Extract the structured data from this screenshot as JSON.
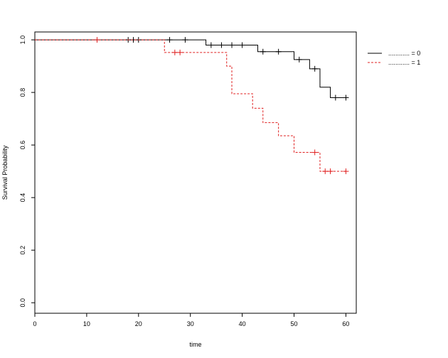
{
  "chart_data": {
    "type": "line",
    "chart_kind": "kaplan-meier survival curve (step)",
    "xlabel": "time",
    "ylabel": "Survival Probability",
    "xlim": [
      0,
      62
    ],
    "ylim": [
      -0.04,
      1.03
    ],
    "x_ticks": [
      "0",
      "10",
      "20",
      "30",
      "40",
      "50",
      "60"
    ],
    "y_ticks": [
      "0.0",
      "0.2",
      "0.4",
      "0.6",
      "0.8",
      "1.0"
    ],
    "grid": false,
    "legend": {
      "placement": "top-right"
    },
    "series": [
      {
        "name": "............ = 0",
        "color": "#000000",
        "dash": "solid",
        "steps": [
          [
            0,
            1.0
          ],
          [
            33,
            0.98
          ],
          [
            43,
            0.955
          ],
          [
            50,
            0.925
          ],
          [
            53,
            0.89
          ],
          [
            55,
            0.82
          ],
          [
            57,
            0.78
          ],
          [
            60,
            0.78
          ]
        ],
        "censored": [
          18,
          19,
          20,
          26,
          29,
          34,
          36,
          38,
          40,
          44,
          47,
          51,
          54,
          58,
          60
        ]
      },
      {
        "name": "............ = 1",
        "color": "#e02020",
        "dash": "dashed",
        "steps": [
          [
            0,
            1.0
          ],
          [
            25,
            0.952
          ],
          [
            37,
            0.9
          ],
          [
            38,
            0.795
          ],
          [
            42,
            0.74
          ],
          [
            44,
            0.685
          ],
          [
            47,
            0.635
          ],
          [
            50,
            0.572
          ],
          [
            55,
            0.5
          ],
          [
            60,
            0.5
          ]
        ],
        "censored": [
          12,
          27,
          28,
          54,
          56,
          57,
          60
        ]
      }
    ]
  }
}
